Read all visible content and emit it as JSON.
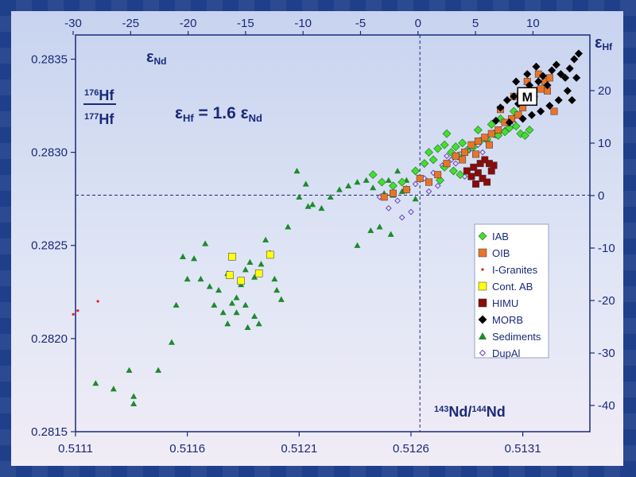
{
  "chart_data": {
    "type": "scatter",
    "x_bottom_ticks": [
      "0.5111",
      "0.5116",
      "0.5121",
      "0.5126",
      "0.5131"
    ],
    "x_bottom_values": [
      0.5111,
      0.5116,
      0.5121,
      0.5126,
      0.5131
    ],
    "xlim": [
      0.5111,
      0.5134
    ],
    "x_top_ticks": [
      "-30",
      "-25",
      "-20",
      "-15",
      "-10",
      "-5",
      "0",
      "5",
      "10"
    ],
    "y_left_ticks": [
      "0.2835",
      "0.2830",
      "0.2825",
      "0.2820",
      "0.2815"
    ],
    "y_left_values": [
      0.2835,
      0.283,
      0.2825,
      0.282,
      0.2815
    ],
    "ylim": [
      0.2815,
      0.28363
    ],
    "y_right_ticks": [
      "20",
      "10",
      "0",
      "-10",
      "-20",
      "-30",
      "-40"
    ],
    "x_label_bottom": {
      "s1": "143",
      "t1": "Nd/",
      "s2": "144",
      "t2": "Nd"
    },
    "x_label_top": {
      "sym": "ε",
      "sub": "Nd"
    },
    "y_label_left": {
      "n_sup": "176",
      "n": "Hf",
      "d_sup": "177",
      "d": "Hf"
    },
    "y_label_right": {
      "sym": "ε",
      "sub": "Hf"
    },
    "equation": {
      "e1": "ε",
      "s1": "Hf",
      "mid": " = 1.6 ε",
      "s2": "Nd"
    },
    "reference_lines": {
      "x": 0.51264,
      "y": 0.28277
    },
    "annotation": "M",
    "annotation_point": {
      "x": 0.51312,
      "y": 0.2833
    },
    "colors": {
      "axis": "#1a2a78",
      "IAB": "#44dd33",
      "OIB": "#e8742a",
      "I-Granites": "#e82020",
      "Cont. AB": "#ffff10",
      "HIMU": "#8b0a0a",
      "MORB": "#000000",
      "Sediments": "#1e8a2e",
      "DupAl": "#6a46c0"
    },
    "series": [
      {
        "name": "IAB",
        "marker": "diamond",
        "points": [
          [
            0.51243,
            0.28288
          ],
          [
            0.51247,
            0.28284
          ],
          [
            0.51252,
            0.28282
          ],
          [
            0.51256,
            0.28284
          ],
          [
            0.51262,
            0.2829
          ],
          [
            0.51266,
            0.28294
          ],
          [
            0.51268,
            0.283
          ],
          [
            0.51272,
            0.28302
          ],
          [
            0.51275,
            0.28304
          ],
          [
            0.51278,
            0.283
          ],
          [
            0.5128,
            0.28303
          ],
          [
            0.51283,
            0.28305
          ],
          [
            0.51285,
            0.28301
          ],
          [
            0.51288,
            0.28303
          ],
          [
            0.51291,
            0.28306
          ],
          [
            0.51294,
            0.28307
          ],
          [
            0.51297,
            0.2831
          ],
          [
            0.51299,
            0.28309
          ],
          [
            0.51302,
            0.28311
          ],
          [
            0.51304,
            0.28313
          ],
          [
            0.51307,
            0.28314
          ],
          [
            0.51309,
            0.2831
          ],
          [
            0.51311,
            0.28309
          ],
          [
            0.51313,
            0.28312
          ],
          [
            0.51279,
            0.2829
          ],
          [
            0.51282,
            0.28288
          ],
          [
            0.51275,
            0.28292
          ],
          [
            0.5127,
            0.28296
          ],
          [
            0.51276,
            0.2831
          ],
          [
            0.51281,
            0.28298
          ],
          [
            0.51273,
            0.28285
          ],
          [
            0.51258,
            0.2828
          ],
          [
            0.513,
            0.28318
          ],
          [
            0.51306,
            0.28322
          ],
          [
            0.51296,
            0.28315
          ],
          [
            0.5129,
            0.28312
          ]
        ]
      },
      {
        "name": "OIB",
        "marker": "square",
        "points": [
          [
            0.51264,
            0.28286
          ],
          [
            0.51268,
            0.28284
          ],
          [
            0.51272,
            0.28288
          ],
          [
            0.51276,
            0.28294
          ],
          [
            0.5128,
            0.28298
          ],
          [
            0.51284,
            0.283
          ],
          [
            0.51287,
            0.28304
          ],
          [
            0.5129,
            0.28306
          ],
          [
            0.51293,
            0.28308
          ],
          [
            0.51296,
            0.2831
          ],
          [
            0.51299,
            0.28312
          ],
          [
            0.51302,
            0.28316
          ],
          [
            0.51305,
            0.28318
          ],
          [
            0.51308,
            0.2832
          ],
          [
            0.5131,
            0.28324
          ],
          [
            0.51313,
            0.28328
          ],
          [
            0.51315,
            0.2833
          ],
          [
            0.51318,
            0.28334
          ],
          [
            0.5132,
            0.28338
          ],
          [
            0.51322,
            0.2834
          ],
          [
            0.51317,
            0.28342
          ],
          [
            0.51321,
            0.28333
          ],
          [
            0.51324,
            0.28322
          ],
          [
            0.51312,
            0.28338
          ],
          [
            0.51306,
            0.2833
          ],
          [
            0.513,
            0.28323
          ],
          [
            0.51252,
            0.28278
          ],
          [
            0.51248,
            0.28276
          ],
          [
            0.51258,
            0.2828
          ],
          [
            0.51295,
            0.28304
          ],
          [
            0.51289,
            0.28299
          ],
          [
            0.51283,
            0.28296
          ]
        ]
      },
      {
        "name": "I-Granites",
        "marker": "dot",
        "points": [
          [
            0.51109,
            0.28213
          ],
          [
            0.51111,
            0.28215
          ],
          [
            0.5112,
            0.2822
          ]
        ]
      },
      {
        "name": "Cont. AB",
        "marker": "square",
        "points": [
          [
            0.5118,
            0.28244
          ],
          [
            0.51179,
            0.28234
          ],
          [
            0.51184,
            0.28231
          ],
          [
            0.51192,
            0.28235
          ],
          [
            0.51197,
            0.28245
          ]
        ]
      },
      {
        "name": "HIMU",
        "marker": "square",
        "points": [
          [
            0.51285,
            0.2829
          ],
          [
            0.51288,
            0.28292
          ],
          [
            0.51291,
            0.28294
          ],
          [
            0.51293,
            0.28296
          ],
          [
            0.51295,
            0.28294
          ],
          [
            0.5129,
            0.28289
          ],
          [
            0.51287,
            0.28287
          ],
          [
            0.51292,
            0.28286
          ],
          [
            0.51294,
            0.28284
          ],
          [
            0.51296,
            0.2829
          ],
          [
            0.51289,
            0.28283
          ],
          [
            0.51297,
            0.28293
          ]
        ]
      },
      {
        "name": "MORB",
        "marker": "diamond",
        "points": [
          [
            0.513,
            0.28324
          ],
          [
            0.51303,
            0.28328
          ],
          [
            0.51306,
            0.2833
          ],
          [
            0.51308,
            0.28326
          ],
          [
            0.51311,
            0.28333
          ],
          [
            0.51313,
            0.28336
          ],
          [
            0.51315,
            0.2833
          ],
          [
            0.51317,
            0.28338
          ],
          [
            0.51319,
            0.28341
          ],
          [
            0.51321,
            0.28336
          ],
          [
            0.51323,
            0.28344
          ],
          [
            0.51325,
            0.28347
          ],
          [
            0.51327,
            0.28342
          ],
          [
            0.51329,
            0.2834
          ],
          [
            0.51331,
            0.28345
          ],
          [
            0.51333,
            0.2835
          ],
          [
            0.5133,
            0.28333
          ],
          [
            0.51326,
            0.28328
          ],
          [
            0.51322,
            0.28325
          ],
          [
            0.51318,
            0.28322
          ],
          [
            0.51314,
            0.2832
          ],
          [
            0.5131,
            0.28318
          ],
          [
            0.51304,
            0.28316
          ],
          [
            0.51332,
            0.28328
          ],
          [
            0.51334,
            0.2834
          ],
          [
            0.51298,
            0.28317
          ],
          [
            0.51316,
            0.28346
          ],
          [
            0.51312,
            0.28342
          ],
          [
            0.51307,
            0.28338
          ],
          [
            0.51335,
            0.28353
          ]
        ]
      },
      {
        "name": "Sediments",
        "marker": "triangle",
        "points": [
          [
            0.51119,
            0.28176
          ],
          [
            0.51127,
            0.28173
          ],
          [
            0.51134,
            0.28183
          ],
          [
            0.51136,
            0.28169
          ],
          [
            0.51136,
            0.28165
          ],
          [
            0.51147,
            0.28183
          ],
          [
            0.51153,
            0.28198
          ],
          [
            0.51155,
            0.28218
          ],
          [
            0.51163,
            0.28243
          ],
          [
            0.51168,
            0.28251
          ],
          [
            0.51166,
            0.28232
          ],
          [
            0.5117,
            0.28228
          ],
          [
            0.51172,
            0.28218
          ],
          [
            0.51176,
            0.28214
          ],
          [
            0.51174,
            0.28226
          ],
          [
            0.51178,
            0.28235
          ],
          [
            0.5118,
            0.28219
          ],
          [
            0.51182,
            0.28222
          ],
          [
            0.51184,
            0.28229
          ],
          [
            0.51186,
            0.28237
          ],
          [
            0.51188,
            0.28241
          ],
          [
            0.5119,
            0.28233
          ],
          [
            0.51193,
            0.2824
          ],
          [
            0.51195,
            0.28253
          ],
          [
            0.51197,
            0.28246
          ],
          [
            0.51199,
            0.28232
          ],
          [
            0.51202,
            0.28221
          ],
          [
            0.51178,
            0.28208
          ],
          [
            0.51182,
            0.28214
          ],
          [
            0.51186,
            0.28218
          ],
          [
            0.5119,
            0.28212
          ],
          [
            0.51192,
            0.28208
          ],
          [
            0.512,
            0.28226
          ],
          [
            0.51205,
            0.2826
          ],
          [
            0.5121,
            0.28276
          ],
          [
            0.51213,
            0.28283
          ],
          [
            0.51209,
            0.2829
          ],
          [
            0.51216,
            0.28272
          ],
          [
            0.5122,
            0.2827
          ],
          [
            0.51224,
            0.28276
          ],
          [
            0.51228,
            0.2828
          ],
          [
            0.51232,
            0.28282
          ],
          [
            0.51236,
            0.28284
          ],
          [
            0.5124,
            0.28285
          ],
          [
            0.51243,
            0.28281
          ],
          [
            0.51248,
            0.28278
          ],
          [
            0.51252,
            0.28277
          ],
          [
            0.51256,
            0.28279
          ],
          [
            0.51246,
            0.2826
          ],
          [
            0.51251,
            0.28256
          ],
          [
            0.51242,
            0.28258
          ],
          [
            0.5125,
            0.28285
          ],
          [
            0.51254,
            0.2829
          ],
          [
            0.51236,
            0.2825
          ],
          [
            0.51258,
            0.28285
          ],
          [
            0.51262,
            0.28275
          ],
          [
            0.5116,
            0.28232
          ],
          [
            0.51187,
            0.28206
          ],
          [
            0.51158,
            0.28244
          ],
          [
            0.51214,
            0.28271
          ]
        ]
      },
      {
        "name": "DupAl",
        "marker": "open-diamond",
        "points": [
          [
            0.51246,
            0.28276
          ],
          [
            0.5125,
            0.2827
          ],
          [
            0.51254,
            0.28274
          ],
          [
            0.51258,
            0.2828
          ],
          [
            0.51262,
            0.28283
          ],
          [
            0.51266,
            0.28286
          ],
          [
            0.5127,
            0.28289
          ],
          [
            0.51274,
            0.28293
          ],
          [
            0.51278,
            0.28296
          ],
          [
            0.51282,
            0.28299
          ],
          [
            0.51286,
            0.28301
          ],
          [
            0.5129,
            0.28304
          ],
          [
            0.51294,
            0.28306
          ],
          [
            0.51298,
            0.28309
          ],
          [
            0.51302,
            0.28312
          ],
          [
            0.51306,
            0.28316
          ],
          [
            0.51256,
            0.28265
          ],
          [
            0.5126,
            0.28268
          ],
          [
            0.51272,
            0.28282
          ],
          [
            0.51268,
            0.28279
          ],
          [
            0.51284,
            0.28287
          ],
          [
            0.51288,
            0.28292
          ],
          [
            0.5128,
            0.28294
          ],
          [
            0.51276,
            0.28298
          ],
          [
            0.51292,
            0.283
          ]
        ]
      }
    ],
    "legend_position": "bottom-right"
  }
}
